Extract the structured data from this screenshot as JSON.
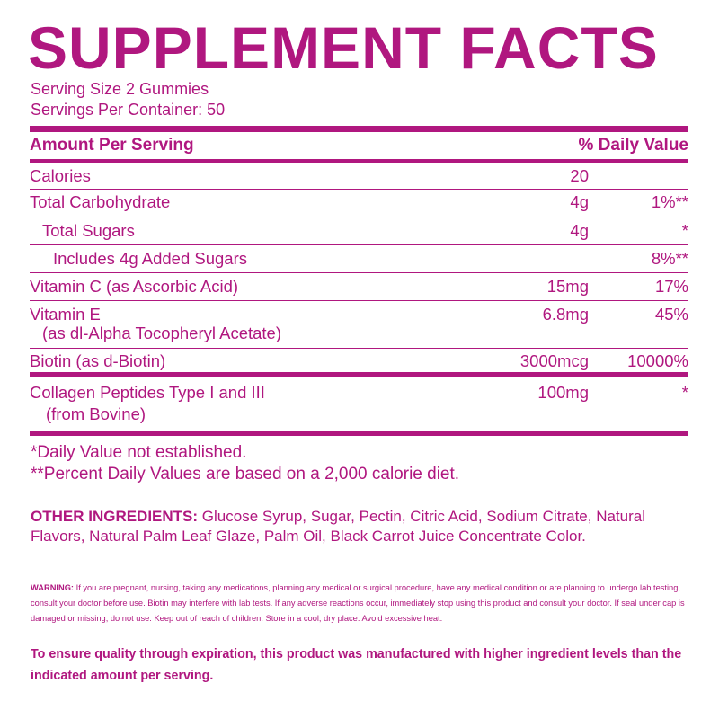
{
  "title": "SUPPLEMENT FACTS",
  "serving_size": "Serving Size 2 Gummies",
  "servings_per_container": "Servings Per Container: 50",
  "header": {
    "amount": "Amount Per Serving",
    "dv": "% Daily Value"
  },
  "rows": [
    {
      "name": "Calories",
      "amount": "20",
      "dv": ""
    },
    {
      "name": "Total Carbohydrate",
      "amount": "4g",
      "dv": "1%**"
    },
    {
      "name": "Total Sugars",
      "amount": "4g",
      "dv": "*"
    },
    {
      "name": "Includes 4g Added Sugars",
      "amount": "",
      "dv": "8%**"
    },
    {
      "name": "Vitamin C (as Ascorbic Acid)",
      "amount": "15mg",
      "dv": "17%"
    },
    {
      "name": "Vitamin E",
      "sub": "(as dl-Alpha Tocopheryl Acetate)",
      "amount": "6.8mg",
      "dv": "45%"
    },
    {
      "name": "Biotin (as d-Biotin)",
      "amount": "3000mcg",
      "dv": "10000%"
    },
    {
      "name": "Collagen Peptides Type I and III",
      "sub": "(from Bovine)",
      "amount": "100mg",
      "dv": "*"
    }
  ],
  "footnotes": [
    "*Daily Value not established.",
    "**Percent Daily Values are based on a 2,000 calorie diet."
  ],
  "other_ingredients": {
    "label": "OTHER INGREDIENTS:",
    "text": " Glucose Syrup, Sugar, Pectin, Citric Acid, Sodium Citrate, Natural Flavors, Natural Palm Leaf Glaze, Palm Oil, Black Carrot Juice Concentrate Color."
  },
  "warning": {
    "label": "WARNING:",
    "text": " If you are pregnant, nursing, taking any medications, planning any medical or surgical procedure, have any medical condition or are planning to undergo lab testing, consult your doctor before use. Biotin may interfere with lab tests. If any adverse reactions occur, immediately stop using this product and consult your doctor. If seal under cap is damaged or missing, do not use. Keep out of reach of children. Store in a cool, dry place. Avoid excessive heat."
  },
  "quality_note": "To ensure quality through expiration, this product was manufactured with higher ingredient levels than the indicated amount per serving.",
  "colors": {
    "brand": "#b0177f"
  }
}
